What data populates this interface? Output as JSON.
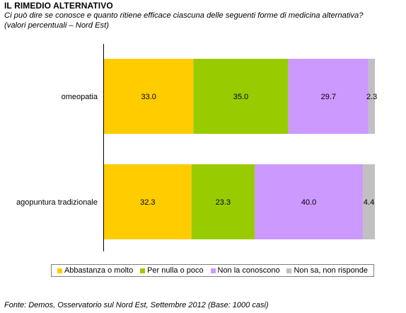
{
  "header": {
    "title": "IL RIMEDIO ALTERNATIVO",
    "subtitle_line1": "Ci può dire se conosce e quanto ritiene efficace ciascuna delle seguenti forme di medicina alternativa?",
    "subtitle_line2": "(valori percentuali – Nord Est)"
  },
  "footer": {
    "source": "Fonte: Demos, Osservatorio sul Nord Est, Settembre 2012 (Base: 1000 casi)"
  },
  "chart_data": {
    "type": "bar",
    "orientation": "horizontal",
    "stacked": true,
    "categories": [
      "omeopatia",
      "agopuntura tradizionale"
    ],
    "series": [
      {
        "name": "Abbastanza o molto",
        "color": "#ffcc00",
        "values": [
          33.0,
          32.3
        ]
      },
      {
        "name": "Per nulla o poco",
        "color": "#99cc00",
        "values": [
          35.0,
          23.3
        ]
      },
      {
        "name": "Non la conoscono",
        "color": "#cc99ff",
        "values": [
          29.7,
          40.0
        ]
      },
      {
        "name": "Non sa, non risponde",
        "color": "#c0c0c0",
        "values": [
          2.3,
          4.4
        ]
      }
    ],
    "xlim": [
      0,
      100
    ],
    "grid": false,
    "legend_position": "bottom",
    "data_labels": true
  }
}
